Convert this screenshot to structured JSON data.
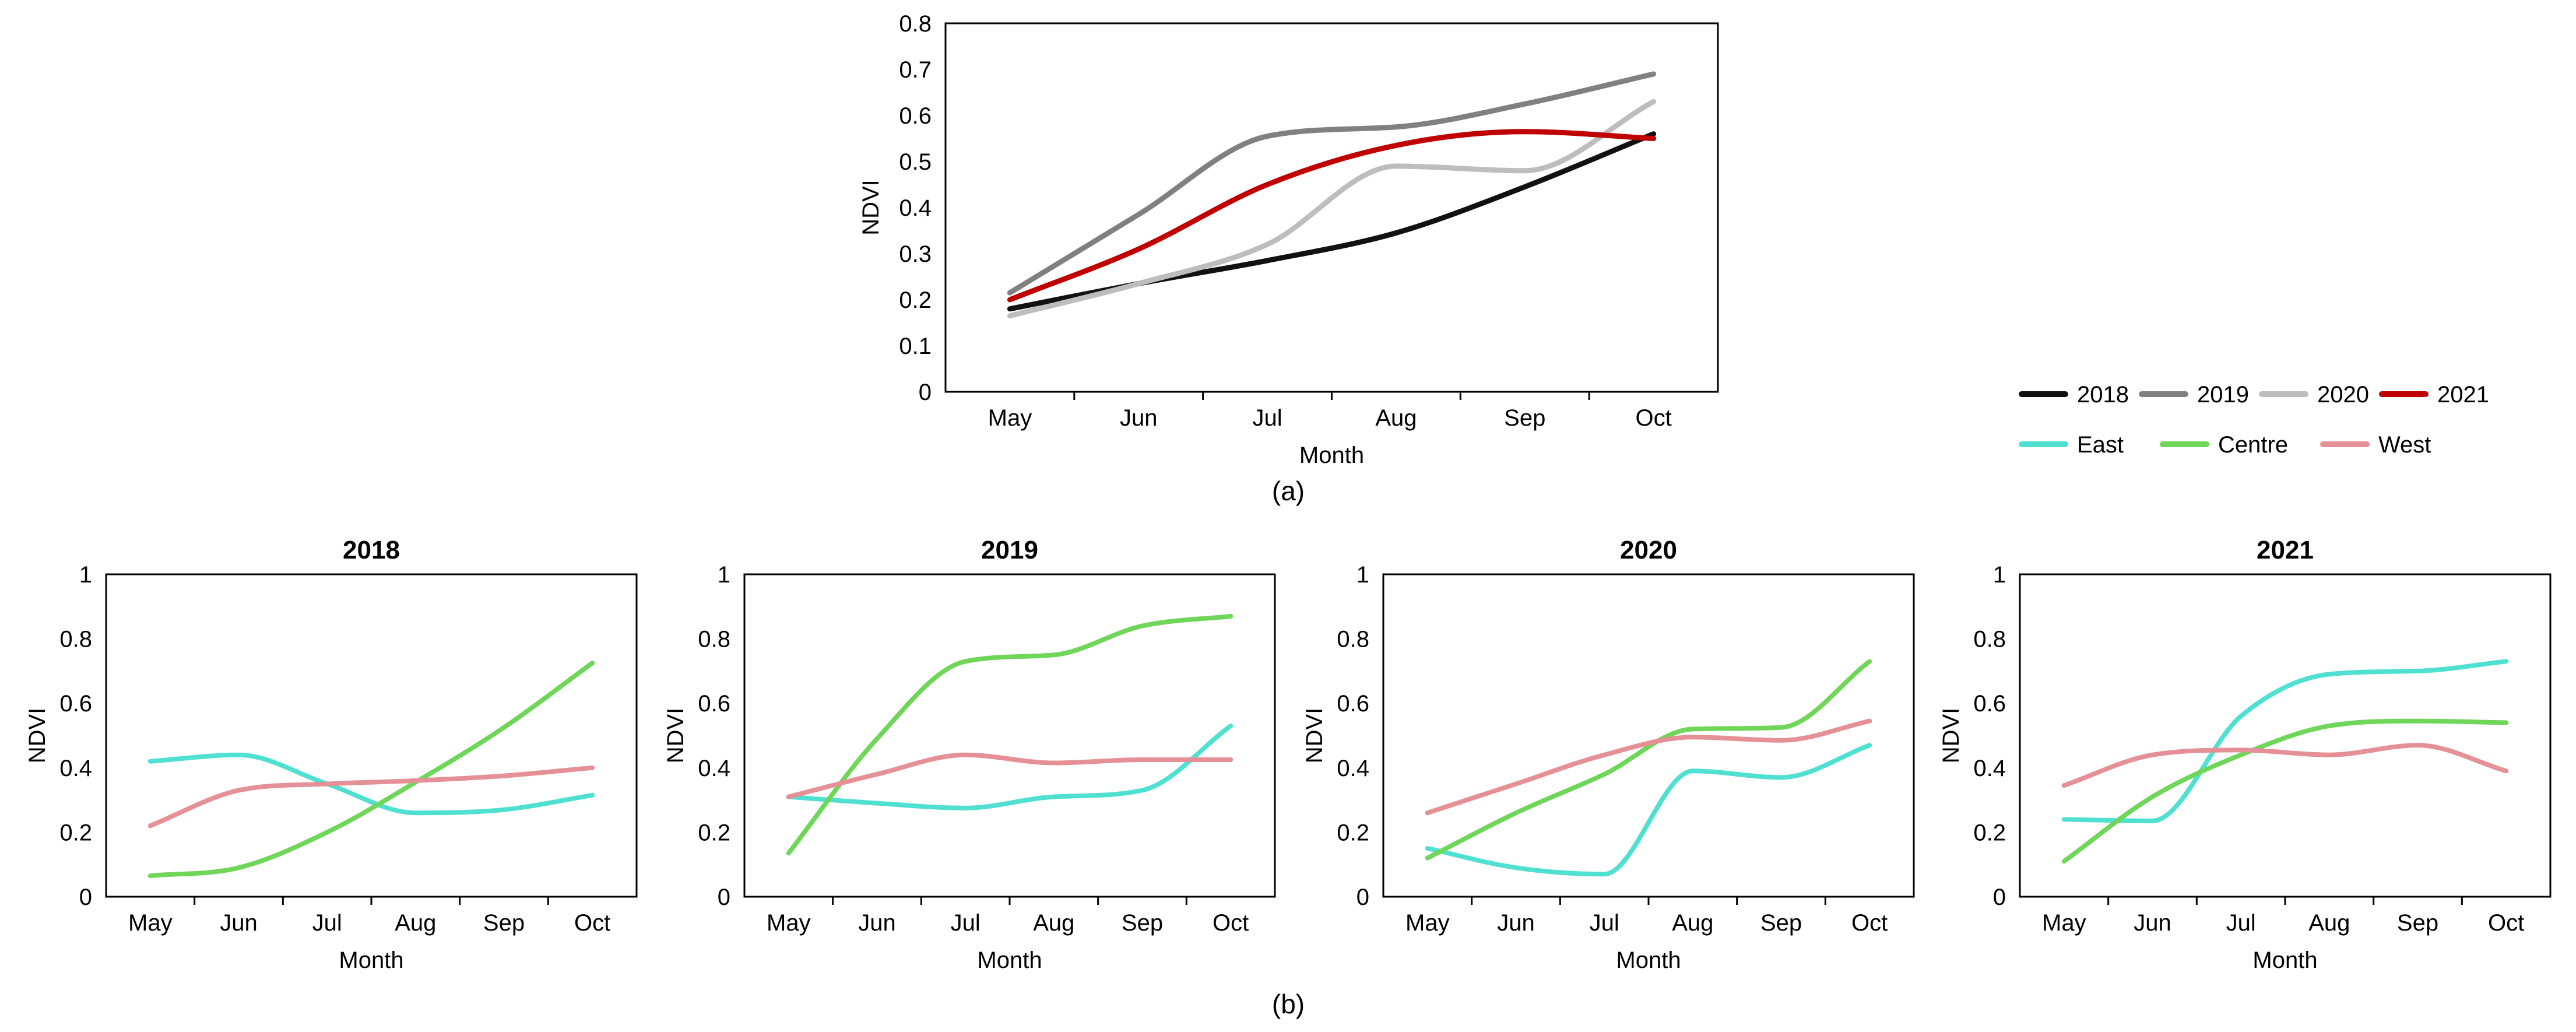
{
  "captions": {
    "top": "(a)",
    "bottom": "(b)"
  },
  "legend": {
    "years": [
      {
        "label": "2018",
        "color": "#111111"
      },
      {
        "label": "2019",
        "color": "#808080"
      },
      {
        "label": "2020",
        "color": "#bdbdbd"
      },
      {
        "label": "2021",
        "color": "#c00000"
      }
    ],
    "regions": [
      {
        "label": "East",
        "color": "#4fe0d2"
      },
      {
        "label": "Centre",
        "color": "#6fd65a"
      },
      {
        "label": "West",
        "color": "#e58f96"
      }
    ]
  },
  "chart_data": [
    {
      "type": "line",
      "title": "",
      "xlabel": "Month",
      "ylabel": "NDVI",
      "categories": [
        "May",
        "Jun",
        "Jul",
        "Aug",
        "Sep",
        "Oct"
      ],
      "ylim": [
        0,
        0.8
      ],
      "yticks": [
        "0",
        "0.1",
        "0.2",
        "0.3",
        "0.4",
        "0.5",
        "0.6",
        "0.7",
        "0.8"
      ],
      "series": [
        {
          "name": "2018",
          "color": "#111111",
          "values": [
            0.18,
            0.235,
            0.285,
            0.345,
            0.445,
            0.56
          ]
        },
        {
          "name": "2019",
          "color": "#808080",
          "values": [
            0.215,
            0.385,
            0.555,
            0.575,
            0.625,
            0.69
          ]
        },
        {
          "name": "2020",
          "color": "#bdbdbd",
          "values": [
            0.165,
            0.235,
            0.32,
            0.49,
            0.48,
            0.63
          ]
        },
        {
          "name": "2021",
          "color": "#c00000",
          "values": [
            0.2,
            0.31,
            0.45,
            0.535,
            0.565,
            0.55
          ]
        }
      ]
    },
    {
      "type": "line",
      "title": "2018",
      "xlabel": "Month",
      "ylabel": "NDVI",
      "categories": [
        "May",
        "Jun",
        "Jul",
        "Aug",
        "Sep",
        "Oct"
      ],
      "ylim": [
        0,
        1
      ],
      "yticks": [
        "0",
        "0.2",
        "0.4",
        "0.6",
        "0.8",
        "1"
      ],
      "series": [
        {
          "name": "East",
          "color": "#4fe0d2",
          "values": [
            0.42,
            0.44,
            0.35,
            0.26,
            0.27,
            0.315
          ]
        },
        {
          "name": "Centre",
          "color": "#6fd65a",
          "values": [
            0.065,
            0.09,
            0.2,
            0.355,
            0.525,
            0.725
          ]
        },
        {
          "name": "West",
          "color": "#e58f96",
          "values": [
            0.22,
            0.33,
            0.35,
            0.36,
            0.375,
            0.4
          ]
        }
      ]
    },
    {
      "type": "line",
      "title": "2019",
      "xlabel": "Month",
      "ylabel": "NDVI",
      "categories": [
        "May",
        "Jun",
        "Jul",
        "Aug",
        "Sep",
        "Oct"
      ],
      "ylim": [
        0,
        1
      ],
      "yticks": [
        "0",
        "0.2",
        "0.4",
        "0.6",
        "0.8",
        "1"
      ],
      "series": [
        {
          "name": "East",
          "color": "#4fe0d2",
          "values": [
            0.31,
            0.29,
            0.275,
            0.31,
            0.33,
            0.53
          ]
        },
        {
          "name": "Centre",
          "color": "#6fd65a",
          "values": [
            0.135,
            0.49,
            0.73,
            0.75,
            0.84,
            0.87
          ]
        },
        {
          "name": "West",
          "color": "#e58f96",
          "values": [
            0.31,
            0.38,
            0.44,
            0.415,
            0.425,
            0.425
          ]
        }
      ]
    },
    {
      "type": "line",
      "title": "2020",
      "xlabel": "Month",
      "ylabel": "NDVI",
      "categories": [
        "May",
        "Jun",
        "Jul",
        "Aug",
        "Sep",
        "Oct"
      ],
      "ylim": [
        0,
        1
      ],
      "yticks": [
        "0",
        "0.2",
        "0.4",
        "0.6",
        "0.8",
        "1"
      ],
      "series": [
        {
          "name": "East",
          "color": "#4fe0d2",
          "values": [
            0.15,
            0.09,
            0.07,
            0.39,
            0.37,
            0.47
          ]
        },
        {
          "name": "Centre",
          "color": "#6fd65a",
          "values": [
            0.12,
            0.26,
            0.38,
            0.52,
            0.525,
            0.73
          ]
        },
        {
          "name": "West",
          "color": "#e58f96",
          "values": [
            0.26,
            0.35,
            0.44,
            0.495,
            0.485,
            0.545
          ]
        }
      ]
    },
    {
      "type": "line",
      "title": "2021",
      "xlabel": "Month",
      "ylabel": "NDVI",
      "categories": [
        "May",
        "Jun",
        "Jul",
        "Aug",
        "Sep",
        "Oct"
      ],
      "ylim": [
        0,
        1
      ],
      "yticks": [
        "0",
        "0.2",
        "0.4",
        "0.6",
        "0.8",
        "1"
      ],
      "series": [
        {
          "name": "East",
          "color": "#4fe0d2",
          "values": [
            0.24,
            0.235,
            0.56,
            0.69,
            0.7,
            0.73
          ]
        },
        {
          "name": "Centre",
          "color": "#6fd65a",
          "values": [
            0.11,
            0.31,
            0.44,
            0.53,
            0.545,
            0.54
          ]
        },
        {
          "name": "West",
          "color": "#e58f96",
          "values": [
            0.345,
            0.44,
            0.455,
            0.44,
            0.47,
            0.39
          ]
        }
      ]
    }
  ]
}
